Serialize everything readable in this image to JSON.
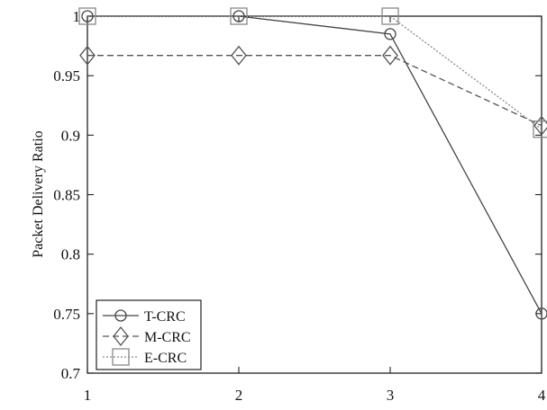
{
  "chart_data": {
    "type": "line",
    "x": [
      1,
      2,
      3,
      4
    ],
    "series": [
      {
        "name": "T-CRC",
        "values": [
          1.0,
          1.0,
          0.985,
          0.75
        ],
        "marker": "circle",
        "line_style": "solid",
        "color": "#444444"
      },
      {
        "name": "M-CRC",
        "values": [
          0.967,
          0.967,
          0.967,
          0.908
        ],
        "marker": "diamond",
        "line_style": "dashed",
        "color": "#555555"
      },
      {
        "name": "E-CRC",
        "values": [
          1.0,
          1.0,
          1.0,
          0.905
        ],
        "marker": "square",
        "line_style": "dotted",
        "color": "#888888"
      }
    ],
    "title": "",
    "xlabel": "",
    "ylabel": "Packet Delivery Ratio",
    "xlim": [
      1,
      4
    ],
    "ylim": [
      0.7,
      1.0
    ],
    "x_ticks": [
      "1",
      "2",
      "3",
      "4"
    ],
    "y_ticks": [
      "0.7",
      "0.75",
      "0.8",
      "0.85",
      "0.9",
      "0.95",
      "1"
    ],
    "grid": false,
    "legend_position": "bottom-left"
  }
}
